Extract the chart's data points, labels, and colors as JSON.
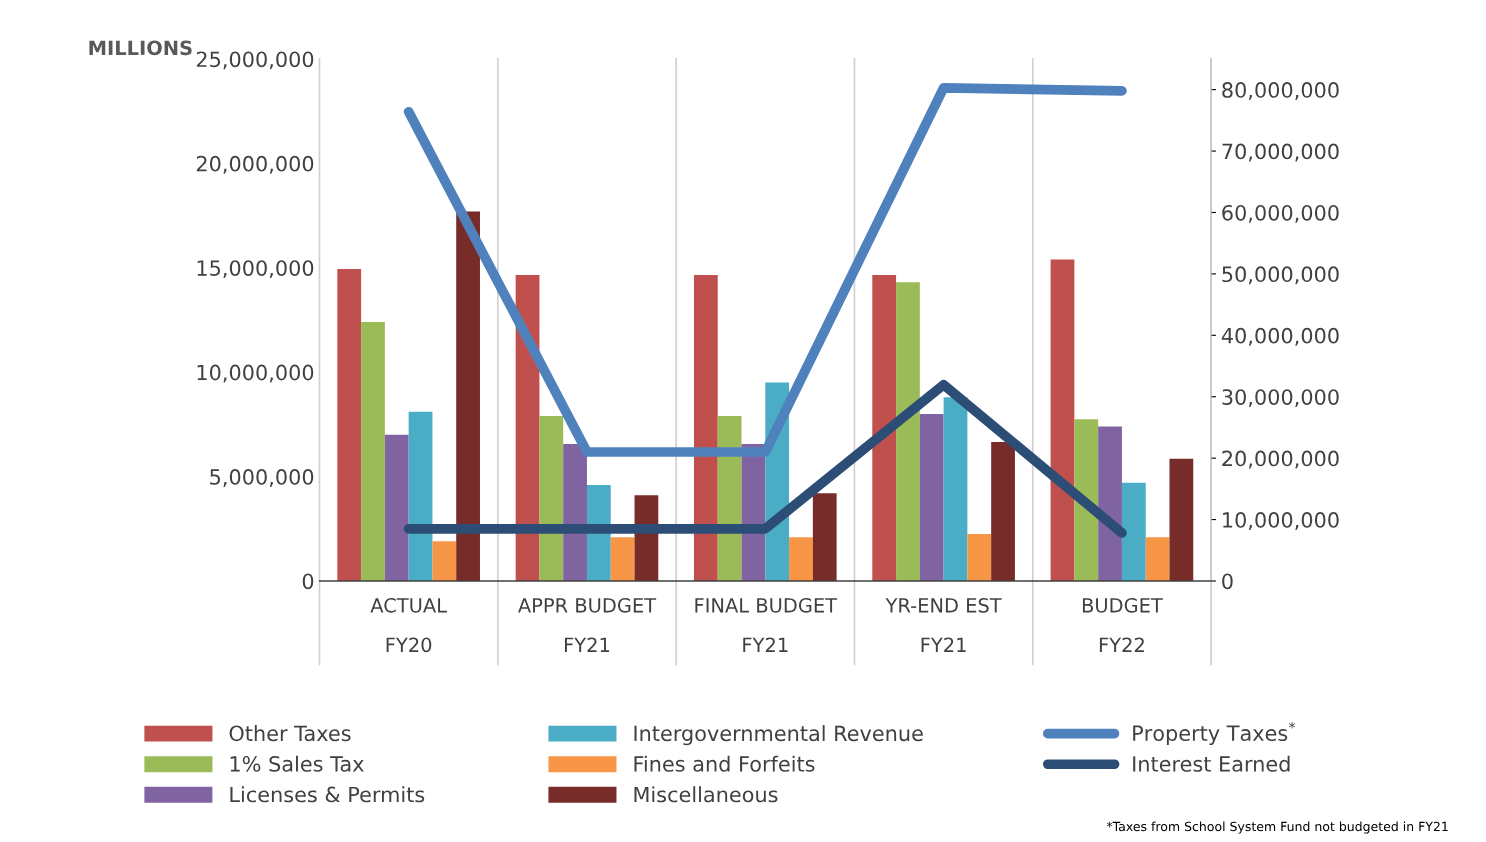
{
  "chart_data": {
    "type": "bar",
    "ylabel": "MILLIONS",
    "categories": [
      "ACTUAL\nFY20",
      "APPR BUDGET\nFY21",
      "FINAL BUDGET\nFY21",
      "YR-END EST\nFY21",
      "BUDGET\nFY22"
    ],
    "series": [
      {
        "name": "Other Taxes",
        "color": "#c0504d",
        "values": [
          14940000,
          14650000,
          14650000,
          14650000,
          15400000
        ]
      },
      {
        "name": "1% Sales Tax",
        "color": "#9bbb59",
        "values": [
          12400000,
          7900000,
          7900000,
          14300000,
          7750000
        ]
      },
      {
        "name": "Licenses & Permits",
        "color": "#8064a2",
        "values": [
          7000000,
          6560000,
          6560000,
          8000000,
          7400000
        ]
      },
      {
        "name": "Intergovernmental Revenue",
        "color": "#4bacc6",
        "values": [
          8100000,
          4600000,
          9500000,
          8800000,
          4700000
        ]
      },
      {
        "name": "Fines and Forfeits",
        "color": "#f79646",
        "values": [
          1900000,
          2100000,
          2100000,
          2250000,
          2100000
        ]
      },
      {
        "name": "Miscellaneous",
        "color": "#772c2a",
        "values": [
          17700000,
          4100000,
          4200000,
          6650000,
          5850000
        ]
      },
      {
        "name": "Property Taxes$^{*}$",
        "color": "#4f81bd",
        "type": "line",
        "axis": "y2",
        "values": [
          76400000,
          21000000,
          21000000,
          80300000,
          79800000
        ]
      },
      {
        "name": "Interest Earned",
        "color": "#2c4d75",
        "type": "line",
        "values": [
          2500000,
          2500000,
          2500000,
          9400000,
          2300000
        ]
      }
    ],
    "ylim": [
      0,
      25000000
    ],
    "yticks": [
      {
        "value": 0,
        "label": "0"
      },
      {
        "value": 5000000,
        "label": "5,000,000"
      },
      {
        "value": 10000000,
        "label": "10,000,000"
      },
      {
        "value": 15000000,
        "label": "15,000,000"
      },
      {
        "value": 20000000,
        "label": "20,000,000"
      },
      {
        "value": 25000000,
        "label": "25,000,000"
      }
    ],
    "y2lim": [
      0,
      85000000
    ],
    "y2ticks": [
      {
        "value": 0,
        "label": "0"
      },
      {
        "value": 10000000,
        "label": "10,000,000"
      },
      {
        "value": 20000000,
        "label": "20,000,000"
      },
      {
        "value": 30000000,
        "label": "30,000,000"
      },
      {
        "value": 40000000,
        "label": "40,000,000"
      },
      {
        "value": 50000000,
        "label": "50,000,000"
      },
      {
        "value": 60000000,
        "label": "60,000,000"
      },
      {
        "value": 70000000,
        "label": "70,000,000"
      },
      {
        "value": 80000000,
        "label": "80,000,000"
      }
    ],
    "grid": "x",
    "legend": "bottom",
    "marker": "none",
    "line_style": "solid",
    "annotations": [
      "*Taxes from School System Fund not budgeted in FY21"
    ]
  }
}
